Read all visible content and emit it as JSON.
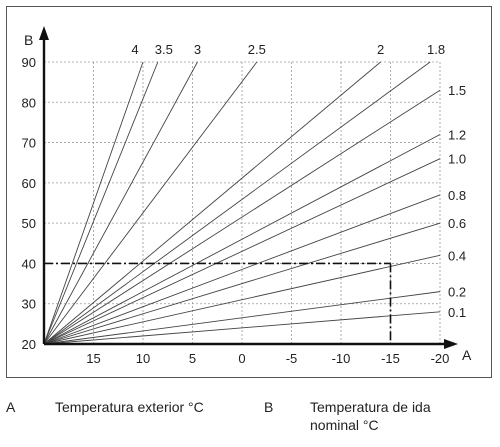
{
  "chart_data": {
    "type": "line",
    "title": "",
    "x_axis": {
      "letter": "A",
      "ticks": [
        15,
        10,
        5,
        0,
        -5,
        -10,
        -15,
        -20
      ],
      "range": [
        20,
        -20
      ]
    },
    "y_axis": {
      "letter": "B",
      "ticks": [
        20,
        30,
        40,
        50,
        60,
        70,
        80,
        90
      ],
      "range": [
        20,
        90
      ]
    },
    "grid": "dashed",
    "origin": {
      "x": 20,
      "y": 20
    },
    "series": [
      {
        "name": "4",
        "end": {
          "x": 10.0,
          "y": 90
        }
      },
      {
        "name": "3.5",
        "end": {
          "x": 8.5,
          "y": 90
        }
      },
      {
        "name": "3",
        "end": {
          "x": 4.5,
          "y": 90
        }
      },
      {
        "name": "2.5",
        "end": {
          "x": -1.5,
          "y": 90
        }
      },
      {
        "name": "2",
        "end": {
          "x": -14.0,
          "y": 90
        }
      },
      {
        "name": "1.8",
        "end": {
          "x": -19.0,
          "y": 90
        }
      },
      {
        "name": "1.5",
        "end": {
          "x": -20,
          "y": 83
        }
      },
      {
        "name": "1.2",
        "end": {
          "x": -20,
          "y": 72
        }
      },
      {
        "name": "1.0",
        "end": {
          "x": -20,
          "y": 66
        }
      },
      {
        "name": "0.8",
        "end": {
          "x": -20,
          "y": 57
        }
      },
      {
        "name": "0.6",
        "end": {
          "x": -20,
          "y": 50
        }
      },
      {
        "name": "0.4",
        "end": {
          "x": -20,
          "y": 42
        }
      },
      {
        "name": "0.2",
        "end": {
          "x": -20,
          "y": 33
        }
      },
      {
        "name": "0.1",
        "end": {
          "x": -20,
          "y": 28
        }
      }
    ],
    "reference_lines": {
      "x": -15,
      "y": 40,
      "style": "dash-dot"
    }
  },
  "legend": {
    "a_letter": "A",
    "a_text": "Temperatura exterior °C",
    "b_letter": "B",
    "b_text_line1": "Temperatura de ida",
    "b_text_line2": "nominal °C"
  }
}
